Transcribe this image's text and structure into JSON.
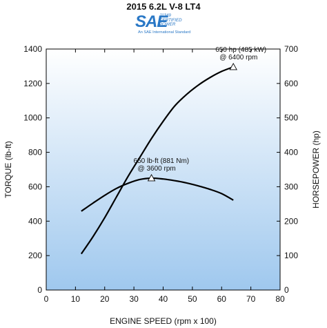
{
  "header": {
    "title": "2015 6.2L V-8 LT4",
    "badge_mark": "SAE",
    "badge_cert_lines": [
      "J1349",
      "CERTIFIED",
      "POWER"
    ],
    "badge_sub": "An SAE International Standard"
  },
  "colors": {
    "badge": "#2a78c6",
    "plot_gradient_top": "#ffffff",
    "plot_gradient_bottom": "#9fc8ee",
    "curve": "#000000"
  },
  "chart_data": {
    "type": "line",
    "xlabel": "ENGINE SPEED (rpm x 100)",
    "ylabel_left": "TORQUE (lb-ft)",
    "ylabel_right": "HORSEPOWER (hp)",
    "xlim": [
      0,
      80
    ],
    "ylim_left": [
      0,
      1400
    ],
    "ylim_right": [
      0,
      700
    ],
    "x_ticks": [
      0,
      10,
      20,
      30,
      40,
      50,
      60,
      70,
      80
    ],
    "y_ticks_left": [
      0,
      200,
      400,
      600,
      800,
      1000,
      1200,
      1400
    ],
    "y_ticks_right": [
      0,
      100,
      200,
      300,
      400,
      500,
      600,
      700
    ],
    "grid": false,
    "series": [
      {
        "name": "Torque",
        "axis": "left",
        "x": [
          12,
          16,
          20,
          24,
          28,
          32,
          36,
          40,
          44,
          48,
          52,
          56,
          60,
          64
        ],
        "y": [
          458,
          505,
          550,
          590,
          620,
          642,
          650,
          645,
          635,
          622,
          605,
          585,
          560,
          522
        ]
      },
      {
        "name": "Horsepower",
        "axis": "right",
        "x": [
          12,
          16,
          20,
          24,
          28,
          32,
          36,
          40,
          44,
          48,
          52,
          56,
          60,
          64
        ],
        "y": [
          105,
          155,
          210,
          270,
          330,
          385,
          440,
          490,
          535,
          568,
          595,
          617,
          635,
          648
        ]
      }
    ],
    "annotations": [
      {
        "axis": "left",
        "x": 36,
        "y": 650,
        "lines": [
          "650 lb-ft (881 Nm)",
          "@ 3600 rpm"
        ]
      },
      {
        "axis": "right",
        "x": 64,
        "y": 648,
        "lines": [
          "650 hp (485 kW)",
          "@ 6400 rpm"
        ]
      }
    ]
  }
}
